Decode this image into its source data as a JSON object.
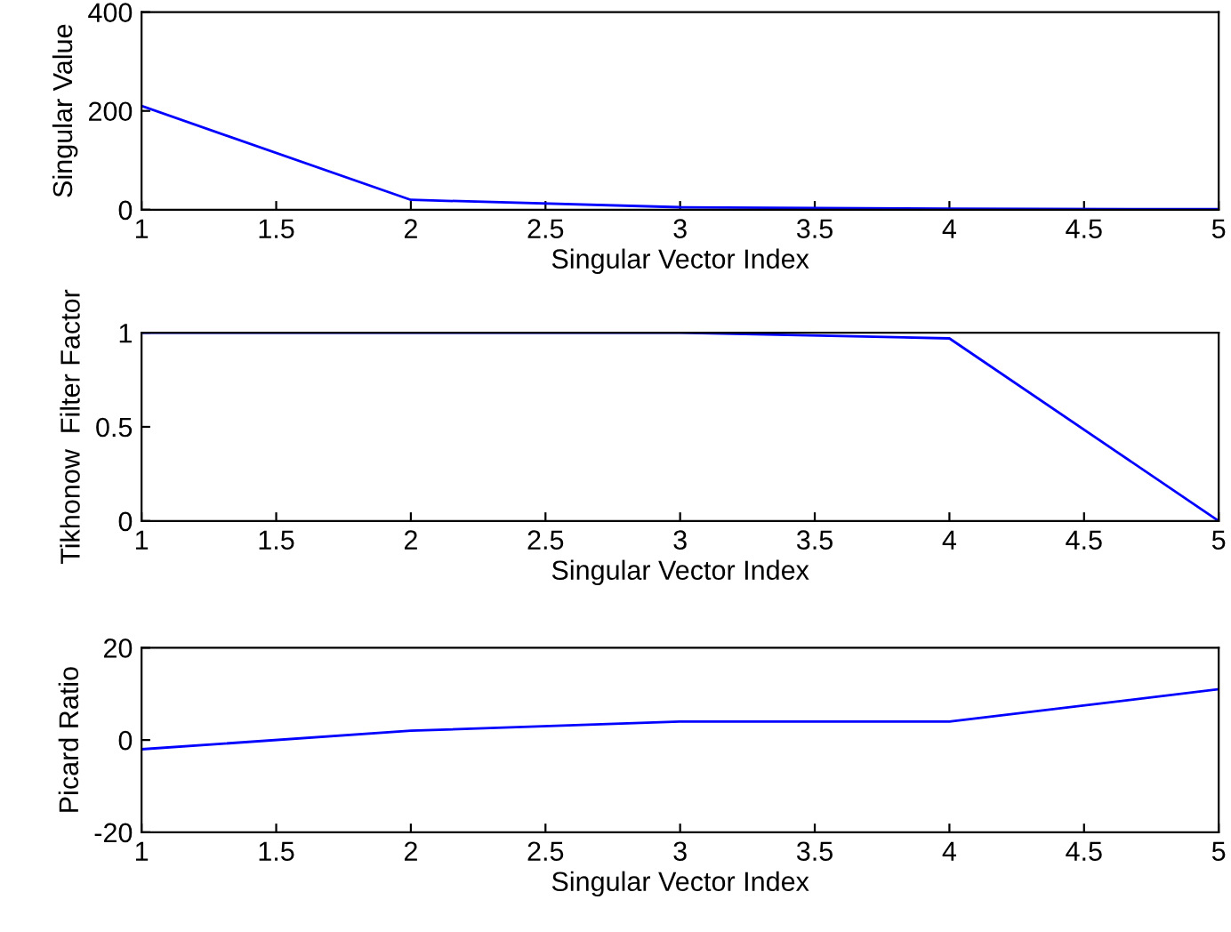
{
  "chart_data": [
    {
      "type": "line",
      "xlabel": "Singular Vector Index",
      "ylabel": "Singular Value",
      "x": [
        1,
        2,
        3,
        4,
        5
      ],
      "series": [
        {
          "color": "#0000ff",
          "values": [
            210,
            20,
            5,
            2,
            1
          ]
        }
      ],
      "xlim": [
        1,
        5
      ],
      "xticks": [
        1,
        1.5,
        2,
        2.5,
        3,
        3.5,
        4,
        4.5,
        5
      ],
      "ylim": [
        0,
        400
      ],
      "yticks": [
        0,
        200,
        400
      ]
    },
    {
      "type": "line",
      "xlabel": "Singular Vector Index",
      "ylabel": "Tikhonow  Filter Factor",
      "x": [
        1,
        2,
        3,
        4,
        5
      ],
      "series": [
        {
          "color": "#0000ff",
          "values": [
            1,
            1,
            1,
            0.97,
            0
          ]
        }
      ],
      "xlim": [
        1,
        5
      ],
      "xticks": [
        1,
        1.5,
        2,
        2.5,
        3,
        3.5,
        4,
        4.5,
        5
      ],
      "ylim": [
        0,
        1
      ],
      "yticks": [
        0,
        0.5,
        1
      ]
    },
    {
      "type": "line",
      "xlabel": "Singular Vector Index",
      "ylabel": "Picard Ratio",
      "x": [
        1,
        2,
        3,
        4,
        5
      ],
      "series": [
        {
          "color": "#0000ff",
          "values": [
            -2,
            2,
            4,
            4,
            11
          ]
        }
      ],
      "xlim": [
        1,
        5
      ],
      "xticks": [
        1,
        1.5,
        2,
        2.5,
        3,
        3.5,
        4,
        4.5,
        5
      ],
      "ylim": [
        -20,
        20
      ],
      "yticks": [
        -20,
        0,
        20
      ]
    }
  ]
}
